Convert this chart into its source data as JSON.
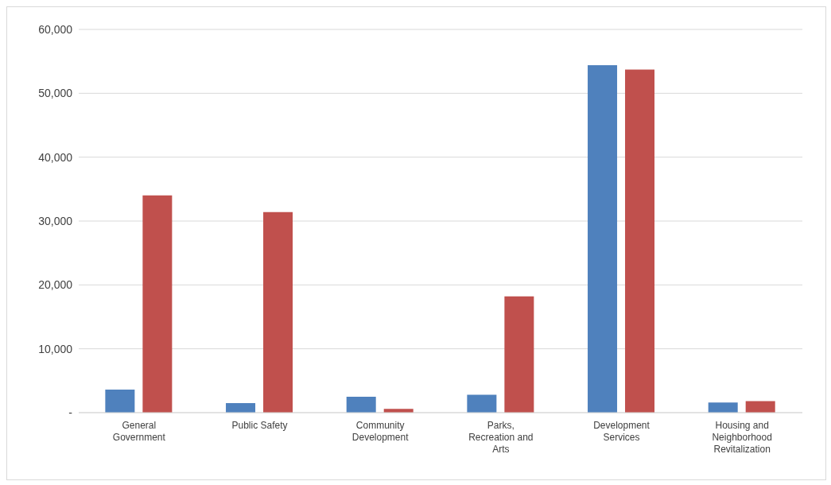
{
  "chart_data": {
    "type": "bar",
    "categories": [
      "General Government",
      "Public Safety",
      "Community Development",
      "Parks, Recreation and Arts",
      "Development Services",
      "Housing and Neighborhood Revitalization"
    ],
    "series": [
      {
        "color": "#4f81bd",
        "values": [
          3600,
          1500,
          2500,
          2800,
          54400,
          1600
        ]
      },
      {
        "color": "#c0504d",
        "values": [
          34000,
          31400,
          600,
          18200,
          53700,
          1800
        ]
      }
    ],
    "ylim": [
      0,
      60000
    ],
    "yticks": [
      {
        "value": 0,
        "label": "-"
      },
      {
        "value": 10000,
        "label": "10,000"
      },
      {
        "value": 20000,
        "label": "20,000"
      },
      {
        "value": 30000,
        "label": "30,000"
      },
      {
        "value": 40000,
        "label": "40,000"
      },
      {
        "value": 50000,
        "label": "50,000"
      },
      {
        "value": 60000,
        "label": "60,000"
      }
    ],
    "grid": "y"
  }
}
